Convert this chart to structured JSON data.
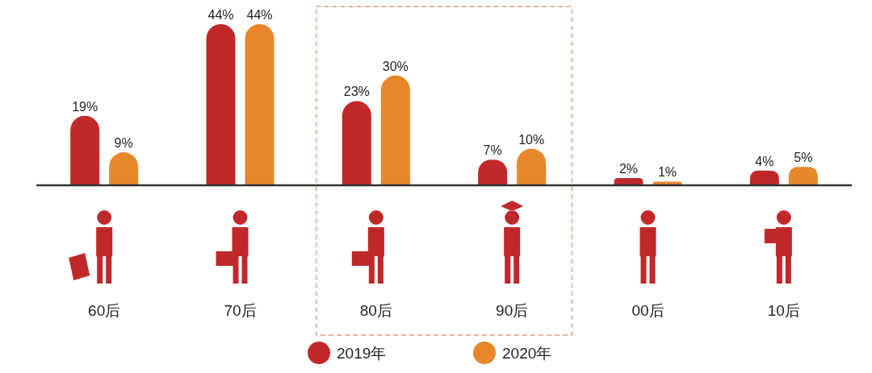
{
  "chart_data": {
    "type": "bar",
    "categories": [
      "60后",
      "70后",
      "80后",
      "90后",
      "00后",
      "10后"
    ],
    "series": [
      {
        "name": "2019年",
        "color": "#c0282a",
        "values": [
          19,
          44,
          23,
          7,
          2,
          4
        ],
        "value_labels": [
          "19%",
          "44%",
          "23%",
          "7%",
          "2%",
          "4%"
        ]
      },
      {
        "name": "2020年",
        "color": "#e8862a",
        "values": [
          9,
          44,
          30,
          10,
          1,
          5
        ],
        "value_labels": [
          "9%",
          "44%",
          "30%",
          "10%",
          "1%",
          "5%"
        ]
      }
    ],
    "legend": "bottom"
  }
}
